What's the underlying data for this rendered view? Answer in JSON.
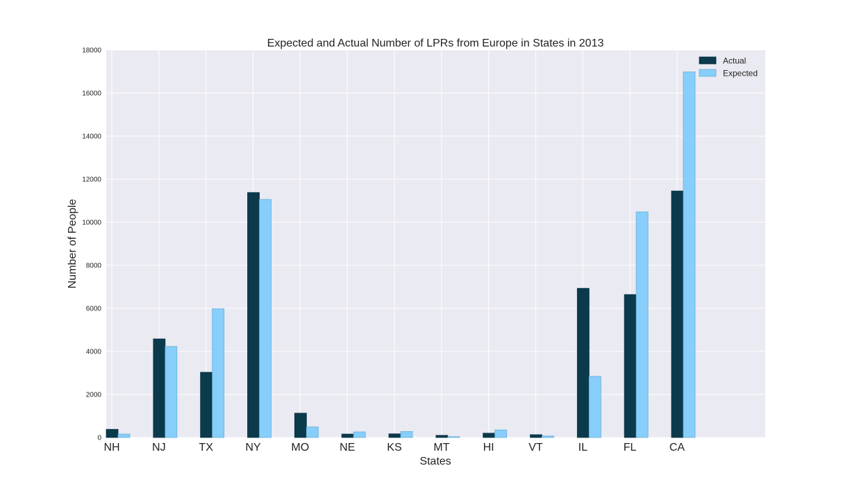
{
  "chart_data": {
    "type": "bar",
    "title": "Expected and Actual Number of LPRs from Europe in States in 2013",
    "xlabel": "States",
    "ylabel": "Number of People",
    "categories": [
      "NH",
      "NJ",
      "TX",
      "NY",
      "MO",
      "NE",
      "KS",
      "MT",
      "HI",
      "VT",
      "IL",
      "FL",
      "CA"
    ],
    "ylim": [
      0,
      18000
    ],
    "yticks": [
      "0",
      "2000",
      "4000",
      "6000",
      "8000",
      "10000",
      "12000",
      "14000",
      "16000",
      "18000"
    ],
    "grid": true,
    "legend_position": "top-right",
    "series": [
      {
        "name": "Actual",
        "color": "#0b3a4d",
        "values": [
          380,
          4580,
          3030,
          11380,
          1130,
          160,
          170,
          100,
          200,
          130,
          6930,
          6640,
          11450
        ]
      },
      {
        "name": "Expected",
        "color": "#87cefa",
        "values": [
          160,
          4230,
          5980,
          11060,
          490,
          260,
          280,
          40,
          350,
          70,
          2840,
          10480,
          16980
        ]
      }
    ]
  }
}
